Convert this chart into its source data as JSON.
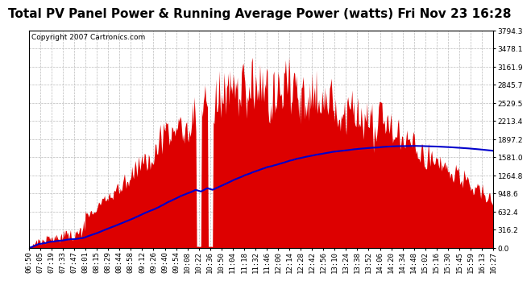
{
  "title": "Total PV Panel Power & Running Average Power (watts) Fri Nov 23 16:28",
  "copyright": "Copyright 2007 Cartronics.com",
  "background_color": "#ffffff",
  "plot_bg_color": "#ffffff",
  "fill_color": "#dd0000",
  "line_color": "#0000cc",
  "grid_color": "#bbbbbb",
  "border_color": "#000000",
  "ymin": 0.0,
  "ymax": 3794.3,
  "yticks": [
    0.0,
    316.2,
    632.4,
    948.6,
    1264.8,
    1581.0,
    1897.2,
    2213.4,
    2529.5,
    2845.7,
    3161.9,
    3478.1,
    3794.3
  ],
  "x_labels": [
    "06:50",
    "07:05",
    "07:19",
    "07:33",
    "07:47",
    "08:01",
    "08:15",
    "08:29",
    "08:44",
    "08:58",
    "09:12",
    "09:26",
    "09:40",
    "09:54",
    "10:08",
    "10:22",
    "10:36",
    "10:50",
    "11:04",
    "11:18",
    "11:32",
    "11:46",
    "12:00",
    "12:14",
    "12:28",
    "12:42",
    "12:56",
    "13:10",
    "13:24",
    "13:38",
    "13:52",
    "14:06",
    "14:20",
    "14:34",
    "14:48",
    "15:02",
    "15:16",
    "15:30",
    "15:45",
    "15:59",
    "16:13",
    "16:27"
  ],
  "title_fontsize": 11,
  "copyright_fontsize": 6.5,
  "tick_fontsize": 6.5,
  "n_points": 560
}
